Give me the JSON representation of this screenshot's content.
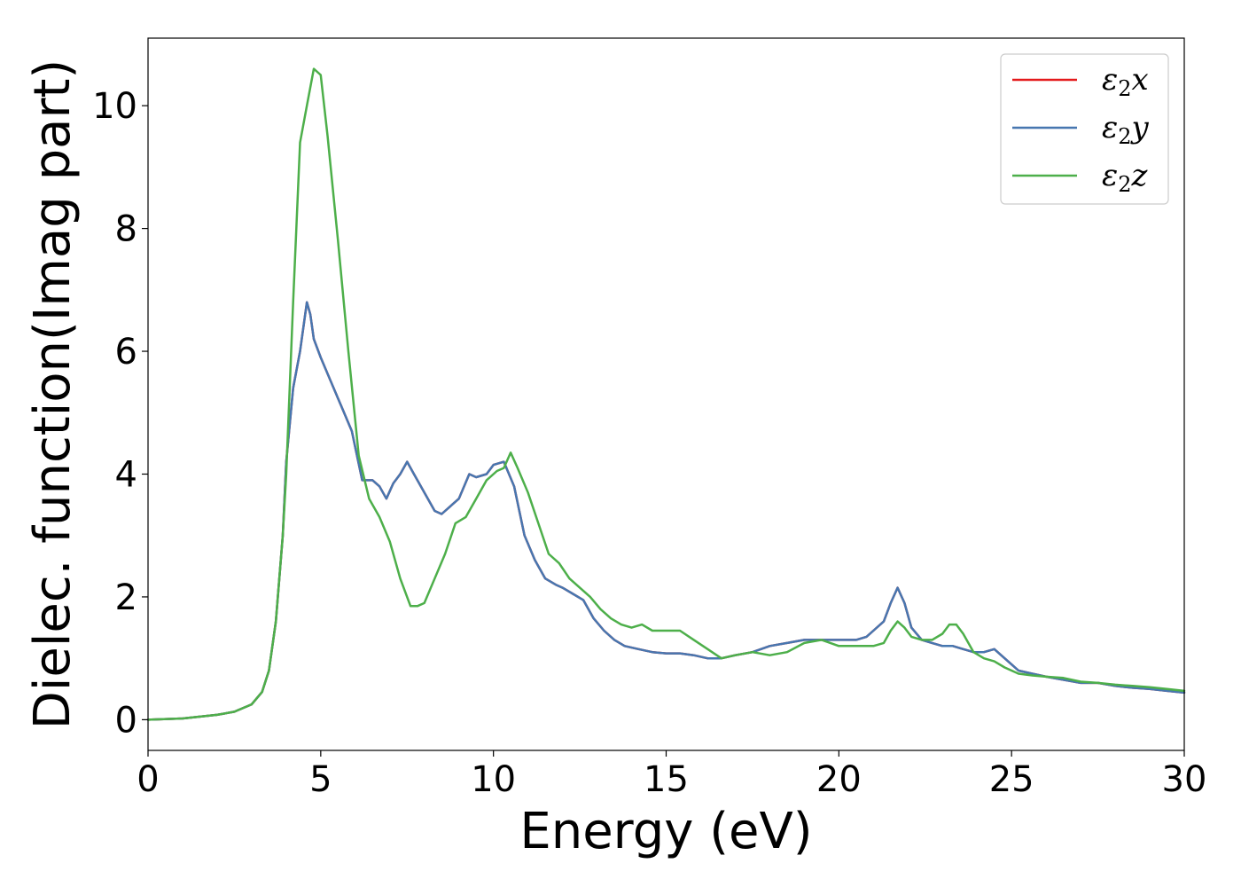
{
  "chart_data": {
    "type": "line",
    "title": "",
    "xlabel": "Energy (eV)",
    "ylabel": "Dielec. function(Imag part)",
    "xlim": [
      0,
      30
    ],
    "ylim": [
      -0.5,
      11.1
    ],
    "xticks": [
      0,
      5,
      10,
      15,
      20,
      25,
      30
    ],
    "yticks": [
      0,
      2,
      4,
      6,
      8,
      10
    ],
    "xtick_labels": [
      "0",
      "5",
      "10",
      "15",
      "20",
      "25",
      "30"
    ],
    "ytick_labels": [
      "0",
      "2",
      "4",
      "6",
      "8",
      "10"
    ],
    "grid": false,
    "legend_position": "top-right",
    "series": [
      {
        "name": "ε2x",
        "legend_main": "ε",
        "legend_sub": "2",
        "legend_suffix": "x",
        "color": "#e41a1c",
        "x": [
          0,
          1,
          2,
          2.5,
          3,
          3.3,
          3.5,
          3.7,
          3.9,
          4.0,
          4.2,
          4.4,
          4.6,
          4.7,
          4.8,
          5.0,
          5.3,
          5.6,
          5.9,
          6.2,
          6.5,
          6.7,
          6.9,
          7.1,
          7.3,
          7.5,
          7.7,
          8.0,
          8.3,
          8.5,
          8.8,
          9.0,
          9.3,
          9.5,
          9.8,
          10.0,
          10.3,
          10.6,
          10.9,
          11.2,
          11.5,
          11.8,
          12.0,
          12.3,
          12.6,
          12.9,
          13.2,
          13.5,
          13.8,
          14.2,
          14.6,
          15.0,
          15.4,
          15.8,
          16.2,
          16.6,
          17.0,
          17.5,
          18.0,
          18.5,
          19.0,
          19.5,
          20.0,
          20.5,
          20.8,
          21.0,
          21.3,
          21.5,
          21.7,
          21.9,
          22.1,
          22.4,
          22.7,
          23.0,
          23.3,
          23.6,
          23.9,
          24.2,
          24.5,
          24.8,
          25.2,
          25.6,
          26.0,
          26.5,
          27.0,
          27.5,
          28.0,
          28.5,
          29.0,
          29.5,
          30.0
        ],
        "y": [
          0.0,
          0.02,
          0.08,
          0.13,
          0.25,
          0.45,
          0.8,
          1.6,
          3.0,
          4.2,
          5.4,
          6.0,
          6.8,
          6.6,
          6.2,
          5.9,
          5.5,
          5.1,
          4.7,
          3.9,
          3.9,
          3.8,
          3.6,
          3.85,
          4.0,
          4.2,
          4.0,
          3.7,
          3.4,
          3.35,
          3.5,
          3.6,
          4.0,
          3.95,
          4.0,
          4.15,
          4.2,
          3.8,
          3.0,
          2.6,
          2.3,
          2.2,
          2.15,
          2.05,
          1.95,
          1.65,
          1.45,
          1.3,
          1.2,
          1.15,
          1.1,
          1.08,
          1.08,
          1.05,
          1.0,
          1.0,
          1.05,
          1.1,
          1.2,
          1.25,
          1.3,
          1.3,
          1.3,
          1.3,
          1.35,
          1.45,
          1.6,
          1.9,
          2.15,
          1.9,
          1.5,
          1.3,
          1.25,
          1.2,
          1.2,
          1.15,
          1.1,
          1.1,
          1.15,
          1.0,
          0.8,
          0.75,
          0.7,
          0.65,
          0.6,
          0.6,
          0.55,
          0.52,
          0.5,
          0.47,
          0.44
        ]
      },
      {
        "name": "ε2y",
        "legend_main": "ε",
        "legend_sub": "2",
        "legend_suffix": "y",
        "color": "#4777b0",
        "x": [
          0,
          1,
          2,
          2.5,
          3,
          3.3,
          3.5,
          3.7,
          3.9,
          4.0,
          4.2,
          4.4,
          4.6,
          4.7,
          4.8,
          5.0,
          5.3,
          5.6,
          5.9,
          6.2,
          6.5,
          6.7,
          6.9,
          7.1,
          7.3,
          7.5,
          7.7,
          8.0,
          8.3,
          8.5,
          8.8,
          9.0,
          9.3,
          9.5,
          9.8,
          10.0,
          10.3,
          10.6,
          10.9,
          11.2,
          11.5,
          11.8,
          12.0,
          12.3,
          12.6,
          12.9,
          13.2,
          13.5,
          13.8,
          14.2,
          14.6,
          15.0,
          15.4,
          15.8,
          16.2,
          16.6,
          17.0,
          17.5,
          18.0,
          18.5,
          19.0,
          19.5,
          20.0,
          20.5,
          20.8,
          21.0,
          21.3,
          21.5,
          21.7,
          21.9,
          22.1,
          22.4,
          22.7,
          23.0,
          23.3,
          23.6,
          23.9,
          24.2,
          24.5,
          24.8,
          25.2,
          25.6,
          26.0,
          26.5,
          27.0,
          27.5,
          28.0,
          28.5,
          29.0,
          29.5,
          30.0
        ],
        "y": [
          0.0,
          0.02,
          0.08,
          0.13,
          0.25,
          0.45,
          0.8,
          1.6,
          3.0,
          4.2,
          5.4,
          6.0,
          6.8,
          6.6,
          6.2,
          5.9,
          5.5,
          5.1,
          4.7,
          3.9,
          3.9,
          3.8,
          3.6,
          3.85,
          4.0,
          4.2,
          4.0,
          3.7,
          3.4,
          3.35,
          3.5,
          3.6,
          4.0,
          3.95,
          4.0,
          4.15,
          4.2,
          3.8,
          3.0,
          2.6,
          2.3,
          2.2,
          2.15,
          2.05,
          1.95,
          1.65,
          1.45,
          1.3,
          1.2,
          1.15,
          1.1,
          1.08,
          1.08,
          1.05,
          1.0,
          1.0,
          1.05,
          1.1,
          1.2,
          1.25,
          1.3,
          1.3,
          1.3,
          1.3,
          1.35,
          1.45,
          1.6,
          1.9,
          2.15,
          1.9,
          1.5,
          1.3,
          1.25,
          1.2,
          1.2,
          1.15,
          1.1,
          1.1,
          1.15,
          1.0,
          0.8,
          0.75,
          0.7,
          0.65,
          0.6,
          0.6,
          0.55,
          0.52,
          0.5,
          0.47,
          0.44
        ]
      },
      {
        "name": "ε2z",
        "legend_main": "ε",
        "legend_sub": "2",
        "legend_suffix": "z",
        "color": "#4daf4a",
        "x": [
          0,
          1,
          2,
          2.5,
          3,
          3.3,
          3.5,
          3.7,
          3.9,
          4.0,
          4.2,
          4.4,
          4.6,
          4.8,
          5.0,
          5.2,
          5.5,
          5.8,
          6.1,
          6.4,
          6.7,
          7.0,
          7.3,
          7.6,
          7.8,
          8.0,
          8.3,
          8.6,
          8.9,
          9.2,
          9.5,
          9.8,
          10.1,
          10.3,
          10.5,
          10.7,
          11.0,
          11.3,
          11.6,
          11.9,
          12.2,
          12.5,
          12.8,
          13.1,
          13.4,
          13.7,
          14.0,
          14.3,
          14.6,
          15.0,
          15.4,
          15.8,
          16.2,
          16.6,
          17.0,
          17.5,
          18.0,
          18.5,
          19.0,
          19.5,
          20.0,
          20.5,
          21.0,
          21.3,
          21.5,
          21.7,
          21.9,
          22.1,
          22.4,
          22.7,
          23.0,
          23.2,
          23.4,
          23.6,
          23.9,
          24.2,
          24.5,
          24.8,
          25.2,
          25.6,
          26.0,
          26.5,
          27.0,
          27.5,
          28.0,
          28.5,
          29.0,
          29.5,
          30.0
        ],
        "y": [
          0.0,
          0.02,
          0.08,
          0.13,
          0.25,
          0.45,
          0.8,
          1.6,
          3.0,
          4.0,
          6.8,
          9.4,
          10.0,
          10.6,
          10.5,
          9.5,
          7.8,
          6.0,
          4.3,
          3.6,
          3.3,
          2.9,
          2.3,
          1.85,
          1.85,
          1.9,
          2.3,
          2.7,
          3.2,
          3.3,
          3.6,
          3.9,
          4.05,
          4.1,
          4.35,
          4.1,
          3.7,
          3.2,
          2.7,
          2.55,
          2.3,
          2.15,
          2.0,
          1.8,
          1.65,
          1.55,
          1.5,
          1.55,
          1.45,
          1.45,
          1.45,
          1.3,
          1.15,
          1.0,
          1.05,
          1.1,
          1.05,
          1.1,
          1.25,
          1.3,
          1.2,
          1.2,
          1.2,
          1.25,
          1.45,
          1.6,
          1.5,
          1.35,
          1.3,
          1.3,
          1.4,
          1.55,
          1.55,
          1.4,
          1.1,
          1.0,
          0.95,
          0.85,
          0.75,
          0.72,
          0.7,
          0.68,
          0.62,
          0.6,
          0.57,
          0.55,
          0.53,
          0.5,
          0.47
        ]
      }
    ]
  }
}
